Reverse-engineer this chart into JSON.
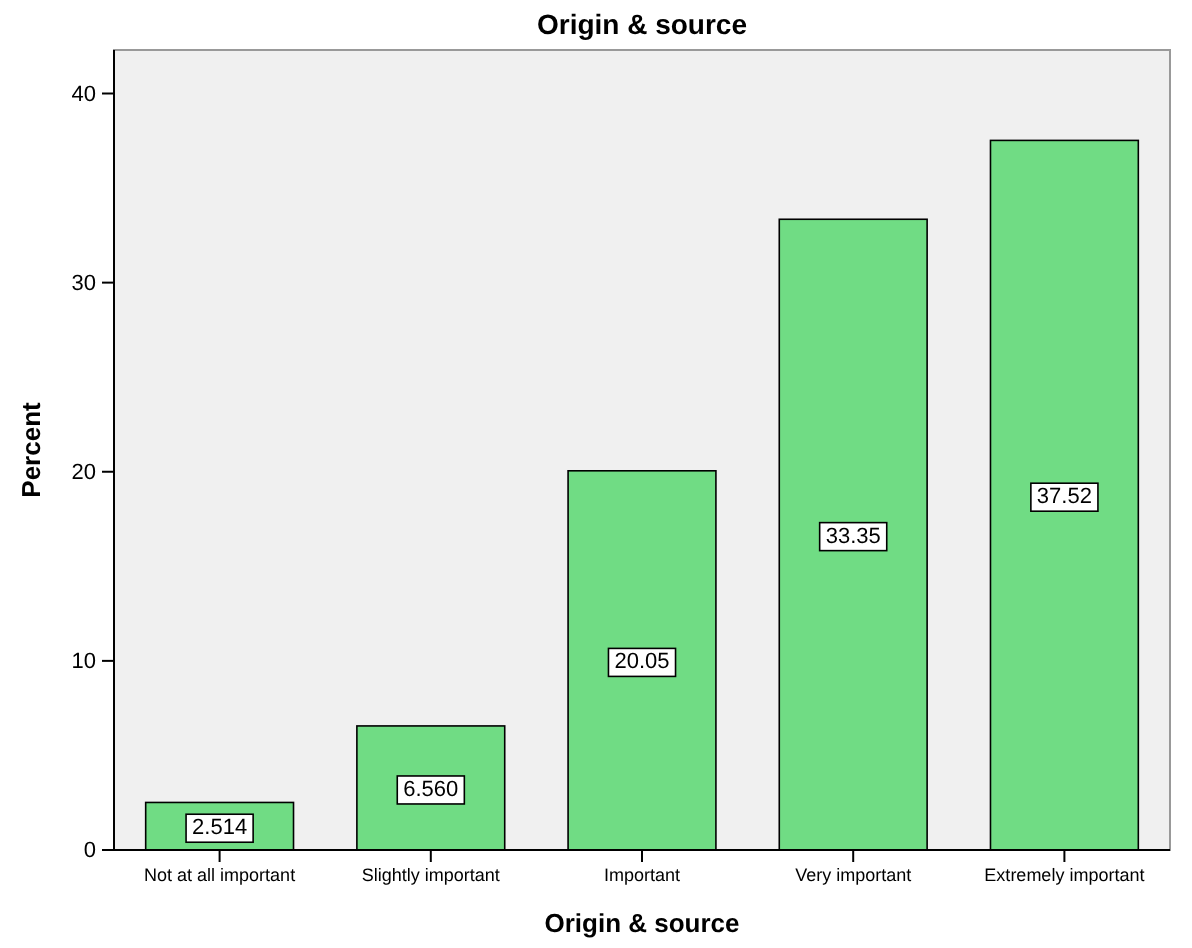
{
  "chart_data": {
    "type": "bar",
    "title": "Origin & source",
    "xlabel": "Origin & source",
    "ylabel": "Percent",
    "categories": [
      "Not at all important",
      "Slightly important",
      "Important",
      "Very important",
      "Extremely important"
    ],
    "values": [
      2.514,
      6.56,
      20.05,
      33.35,
      37.52
    ],
    "value_labels": [
      "2.514",
      "6.560",
      "20.05",
      "33.35",
      "37.52"
    ],
    "color": "#70dc84",
    "ylim": [
      0,
      42.3
    ],
    "yticks": [
      0,
      10,
      20,
      30,
      40
    ],
    "grid": false
  }
}
